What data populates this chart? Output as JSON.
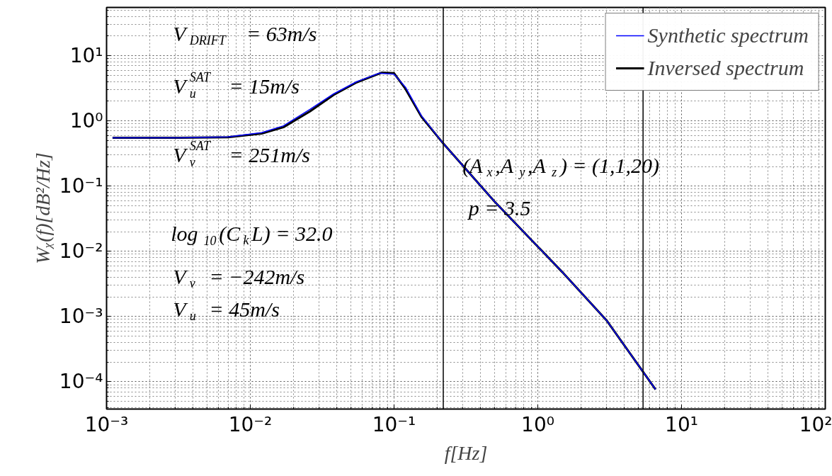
{
  "chart_data": {
    "type": "line",
    "xlabel": "f[Hz]",
    "ylabel": "Wᵪ(f)[dB²/Hz]",
    "log": "xy",
    "grid": true,
    "legend": "top right",
    "line_style": "solid",
    "marker": "none",
    "xlim": [
      0.001,
      100
    ],
    "ylim": [
      3.8e-05,
      55
    ],
    "xticks": [
      {
        "value": 0.001,
        "label": "10⁻³"
      },
      {
        "value": 0.01,
        "label": "10⁻²"
      },
      {
        "value": 0.1,
        "label": "10⁻¹"
      },
      {
        "value": 1,
        "label": "10⁰"
      },
      {
        "value": 10,
        "label": "10¹"
      },
      {
        "value": 100,
        "label": "10²"
      }
    ],
    "yticks": [
      {
        "value": 0.0001,
        "label": "10⁻⁴"
      },
      {
        "value": 0.001,
        "label": "10⁻³"
      },
      {
        "value": 0.01,
        "label": "10⁻²"
      },
      {
        "value": 0.1,
        "label": "10⁻¹"
      },
      {
        "value": 1,
        "label": "10⁰"
      },
      {
        "value": 10,
        "label": "10¹"
      }
    ],
    "series": [
      {
        "name": "Synthetic spectrum",
        "color": "#0000ff",
        "x": [
          0.0011,
          0.003,
          0.007,
          0.012,
          0.017,
          0.026,
          0.038,
          0.055,
          0.079,
          0.1,
          0.12,
          0.155,
          0.22,
          0.5,
          1.48,
          3,
          6.6
        ],
        "values": [
          0.55,
          0.55,
          0.57,
          0.66,
          0.84,
          1.5,
          2.6,
          4.0,
          5.4,
          5.2,
          3.3,
          1.2,
          0.45,
          0.058,
          0.0048,
          0.00088,
          7.6e-05
        ]
      },
      {
        "name": "Inversed spectrum",
        "color": "#000000",
        "x": [
          0.0011,
          0.003,
          0.007,
          0.012,
          0.017,
          0.026,
          0.038,
          0.055,
          0.082,
          0.1,
          0.12,
          0.155,
          0.22,
          0.5,
          1.48,
          3,
          6.6
        ],
        "values": [
          0.55,
          0.55,
          0.56,
          0.64,
          0.8,
          1.4,
          2.5,
          3.9,
          5.5,
          5.4,
          3.1,
          1.16,
          0.45,
          0.058,
          0.0048,
          0.00088,
          7.6e-05
        ]
      }
    ],
    "ref_lines": [
      {
        "axis": "x",
        "value": 0.22,
        "color": "#000000"
      },
      {
        "axis": "x",
        "value": 5.4,
        "color": "#000000"
      }
    ],
    "annotations": [
      "V$_{DRIFT}$ = 63m/s",
      "V$^{SAT}$$_{u}$ = 15m/s",
      "V$^{SAT}$$_{v}$ = 251m/s",
      "log$_{10}$(C$_{k}$L) = 32.0",
      "V$_{v}$ = −242m/s",
      "V$_{u}$ = 45m/s",
      "(A$_{x}$,A$_{y}$,A$_{z}$) = (1,1,20)",
      "p = 3.5"
    ]
  }
}
